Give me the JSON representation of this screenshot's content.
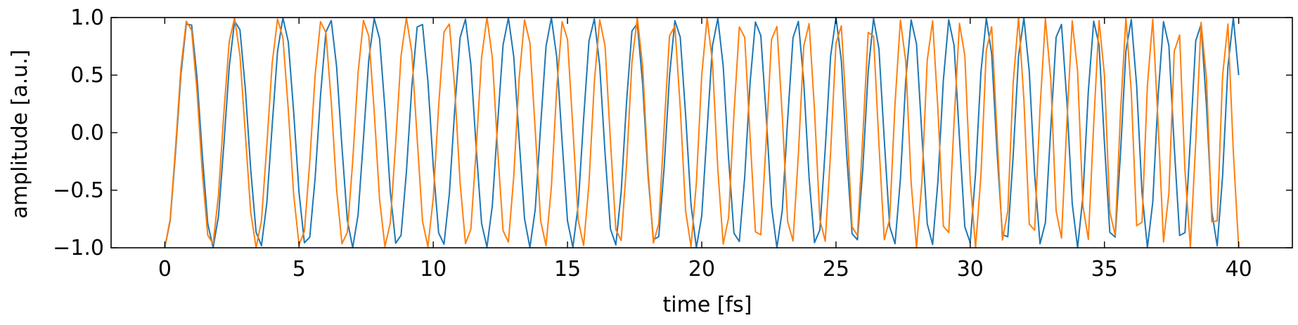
{
  "chart_data": {
    "type": "line",
    "title": "",
    "xlabel": "time [fs]",
    "ylabel": "amplitude [a.u.]",
    "xlim": [
      -2.0,
      42.0
    ],
    "ylim": [
      -1.0,
      1.0
    ],
    "x_ticks": [
      0,
      5,
      10,
      15,
      20,
      25,
      30,
      35,
      40
    ],
    "x_tick_labels": [
      "0",
      "5",
      "10",
      "15",
      "20",
      "25",
      "30",
      "35",
      "40"
    ],
    "y_ticks": [
      -1.0,
      -0.5,
      0.0,
      0.5,
      1.0
    ],
    "y_tick_labels": [
      "−1.0",
      "−0.5",
      "0.0",
      "0.5",
      "1.0"
    ],
    "grid": false,
    "legend": "none",
    "sampling": {
      "x_start": 0.0,
      "x_end": 40.0,
      "x_step": 0.2
    },
    "series": [
      {
        "color": "#1f77b4",
        "form": "-cos(2*pi*x/(a + b*x))",
        "a": 1.8,
        "b": -0.0075
      },
      {
        "color": "#ff7f0e",
        "form": "-cos(2*pi*x/(a + b*x))",
        "a": 1.75,
        "b": -0.0125
      }
    ]
  }
}
